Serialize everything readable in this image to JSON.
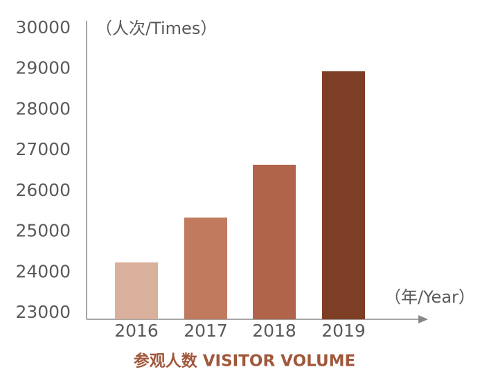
{
  "chart_data": {
    "type": "bar",
    "title": "参观人数  VISITOR VOLUME",
    "y_label": "（人次/Times）",
    "x_label": "（年/Year）",
    "categories": [
      "2016",
      "2017",
      "2018",
      "2019"
    ],
    "values": [
      24400,
      25500,
      26800,
      29100
    ],
    "colors": [
      "#d8b09b",
      "#c07a5e",
      "#b0654a",
      "#7e3e25"
    ],
    "ylim": [
      23000,
      30000
    ],
    "yticks": [
      23000,
      24000,
      25000,
      26000,
      27000,
      28000,
      29000,
      30000
    ],
    "grid": false
  }
}
